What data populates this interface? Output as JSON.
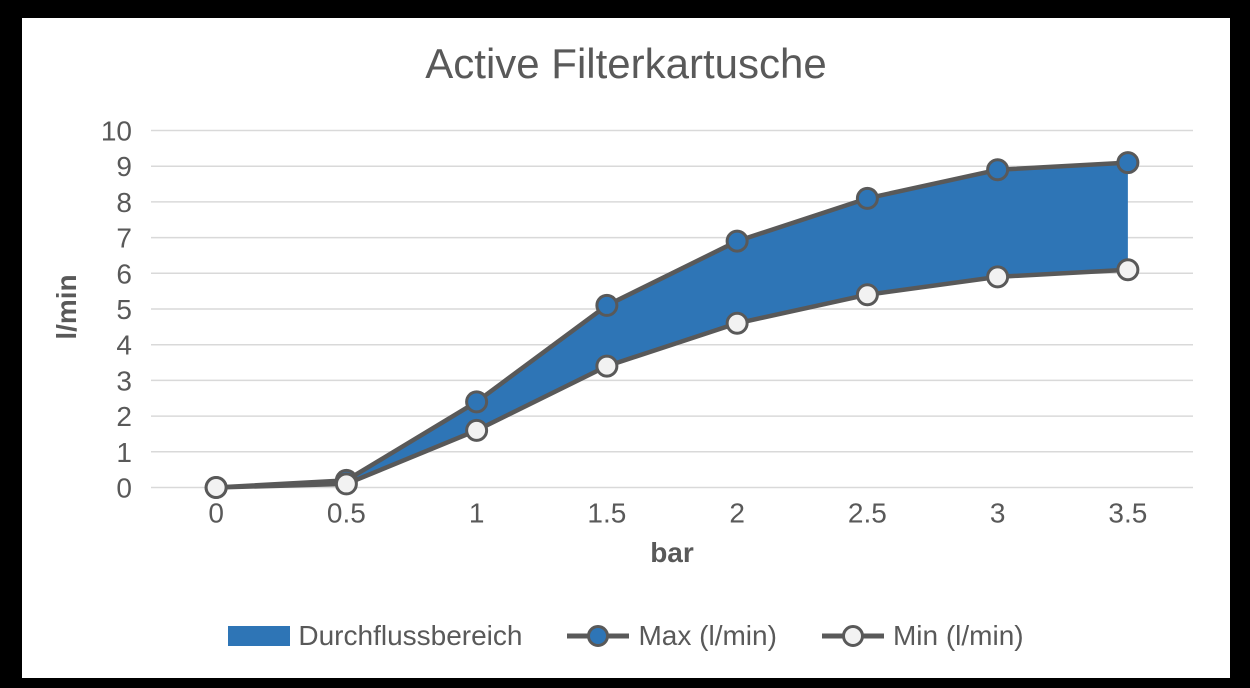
{
  "window": {
    "frame_color": "#000000",
    "panel_color": "#FFFFFF"
  },
  "chart_data": {
    "type": "area",
    "title": "Active Filterkartusche",
    "xlabel": "bar",
    "ylabel": "l/min",
    "x": [
      0,
      0.5,
      1,
      1.5,
      2,
      2.5,
      3,
      3.5
    ],
    "xticklabels": [
      "0",
      "0.5",
      "1",
      "1.5",
      "2",
      "2.5",
      "3",
      "3.5"
    ],
    "ylim": [
      0,
      10
    ],
    "yticklabels": [
      "0",
      "1",
      "2",
      "3",
      "4",
      "5",
      "6",
      "7",
      "8",
      "9",
      "10"
    ],
    "grid": true,
    "legend_position": "bottom",
    "series": [
      {
        "name": "Durchflussbereich",
        "type": "band",
        "upper": "Max (l/min)",
        "lower": "Min (l/min)",
        "fill": "#2E75B6"
      },
      {
        "name": "Max (l/min)",
        "type": "line",
        "marker": "circle-filled",
        "marker_fill": "#2E75B6",
        "values": [
          0,
          0.2,
          2.4,
          5.1,
          6.9,
          8.1,
          8.9,
          9.1
        ]
      },
      {
        "name": "Min (l/min)",
        "type": "line",
        "marker": "circle-open",
        "marker_fill": "#F2F2F2",
        "values": [
          0,
          0.1,
          1.6,
          3.4,
          4.6,
          5.4,
          5.9,
          6.1
        ]
      }
    ],
    "colors": {
      "series_fill": "#2E75B6",
      "line_stroke": "#595959",
      "gridline": "#D9D9D9",
      "text": "#595959"
    }
  }
}
